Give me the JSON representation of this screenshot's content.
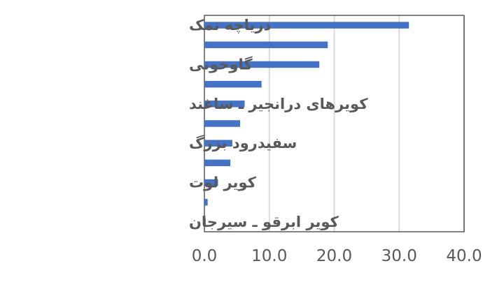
{
  "chart_data": {
    "type": "bar",
    "orientation": "horizontal",
    "title": "",
    "xlabel": "",
    "ylabel": "",
    "categories": [
      "دریاچه نمک",
      "",
      "گاوخونی",
      "",
      "کویرهای درانجیر ـ ساغند",
      "",
      "سفیدرود بزرگ",
      "",
      "کویر لوت",
      "",
      "کویر ابرقو ـ سیرجان"
    ],
    "values": [
      31.5,
      19.0,
      17.7,
      8.8,
      6.2,
      5.5,
      4.3,
      4.0,
      2.1,
      0.5,
      0.2
    ],
    "xlim": [
      0,
      40
    ],
    "x_ticks": [
      0,
      10,
      20,
      30,
      40
    ],
    "x_tick_labels": [
      "0.0",
      "10.0",
      "20.0",
      "30.0",
      "40.0"
    ],
    "grid": "vertical",
    "legend": "none",
    "bar_color": "#4472C4",
    "grid_color": "#D9D9D9",
    "frame_color": "#595959",
    "text_color": "#595959"
  }
}
